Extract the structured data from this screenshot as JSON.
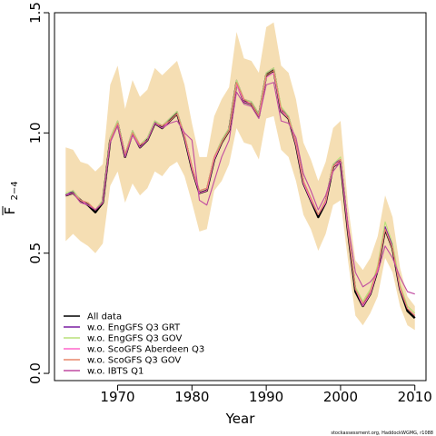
{
  "chart_data": {
    "type": "line",
    "xlabel": "Year",
    "ylabel_main": "F",
    "ylabel_sub": "2−4",
    "xlim": [
      1961.5,
      2011.5
    ],
    "ylim": [
      -0.03,
      1.5
    ],
    "xticks": [
      1970,
      1980,
      1990,
      2000,
      2010
    ],
    "yticks": [
      0.0,
      0.5,
      1.0,
      1.5
    ],
    "ytick_labels": [
      "0.0",
      "0.5",
      "1.0",
      "1.5"
    ],
    "legend_position": "bottom-left",
    "credit": "stockassessment.org, HaddockWGMG, r1088",
    "x": [
      1963,
      1964,
      1965,
      1966,
      1967,
      1968,
      1969,
      1970,
      1971,
      1972,
      1973,
      1974,
      1975,
      1976,
      1977,
      1978,
      1979,
      1980,
      1981,
      1982,
      1983,
      1984,
      1985,
      1986,
      1987,
      1988,
      1989,
      1990,
      1991,
      1992,
      1993,
      1994,
      1995,
      1996,
      1997,
      1998,
      1999,
      2000,
      2001,
      2002,
      2003,
      2004,
      2005,
      2006,
      2007,
      2008,
      2009,
      2010
    ],
    "band": {
      "color": "#f5deb3",
      "upper": [
        0.94,
        0.93,
        0.88,
        0.87,
        0.84,
        0.87,
        1.2,
        1.28,
        1.1,
        1.22,
        1.15,
        1.18,
        1.27,
        1.24,
        1.27,
        1.3,
        1.2,
        1.04,
        0.9,
        0.9,
        1.07,
        1.14,
        1.19,
        1.42,
        1.31,
        1.3,
        1.25,
        1.44,
        1.46,
        1.28,
        1.25,
        1.14,
        0.96,
        0.89,
        0.8,
        0.88,
        1.02,
        1.05,
        0.7,
        0.47,
        0.43,
        0.48,
        0.57,
        0.74,
        0.65,
        0.44,
        0.32,
        0.28
      ],
      "lower": [
        0.55,
        0.58,
        0.55,
        0.53,
        0.5,
        0.54,
        0.78,
        0.84,
        0.71,
        0.79,
        0.74,
        0.77,
        0.84,
        0.82,
        0.86,
        0.88,
        0.82,
        0.71,
        0.59,
        0.6,
        0.76,
        0.8,
        0.87,
        1.02,
        0.96,
        0.95,
        0.89,
        1.06,
        1.07,
        0.93,
        0.9,
        0.8,
        0.66,
        0.6,
        0.51,
        0.58,
        0.7,
        0.72,
        0.47,
        0.24,
        0.2,
        0.25,
        0.32,
        0.48,
        0.42,
        0.28,
        0.2,
        0.18
      ]
    },
    "series": [
      {
        "name": "All data",
        "color": "#000000",
        "width": 2.4,
        "values": [
          0.74,
          0.75,
          0.72,
          0.7,
          0.67,
          0.71,
          0.97,
          1.04,
          0.9,
          1.0,
          0.94,
          0.97,
          1.04,
          1.02,
          1.05,
          1.08,
          0.98,
          0.85,
          0.75,
          0.76,
          0.89,
          0.96,
          1.01,
          1.21,
          1.13,
          1.12,
          1.07,
          1.24,
          1.26,
          1.09,
          1.06,
          0.95,
          0.79,
          0.72,
          0.65,
          0.71,
          0.86,
          0.88,
          0.59,
          0.34,
          0.28,
          0.33,
          0.43,
          0.6,
          0.52,
          0.35,
          0.26,
          0.23
        ]
      },
      {
        "name": "w.o. EngGFS Q3 GRT",
        "color": "#7a1fa2",
        "width": 1.1,
        "values": [
          0.74,
          0.76,
          0.72,
          0.71,
          0.68,
          0.72,
          0.98,
          1.05,
          0.91,
          1.01,
          0.95,
          0.98,
          1.05,
          1.03,
          1.06,
          1.09,
          0.99,
          0.86,
          0.76,
          0.77,
          0.9,
          0.97,
          1.02,
          1.22,
          1.14,
          1.13,
          1.08,
          1.25,
          1.27,
          1.1,
          1.07,
          0.96,
          0.8,
          0.73,
          0.66,
          0.72,
          0.87,
          0.89,
          0.6,
          0.35,
          0.29,
          0.34,
          0.44,
          0.61,
          0.53,
          0.36,
          0.27,
          0.24
        ]
      },
      {
        "name": "w.o. EngGFS Q3 GOV",
        "color": "#b8e07a",
        "width": 1.1,
        "values": [
          0.75,
          0.76,
          0.72,
          0.71,
          0.68,
          0.72,
          0.98,
          1.05,
          0.91,
          1.01,
          0.95,
          0.98,
          1.05,
          1.03,
          1.06,
          1.09,
          0.99,
          0.86,
          0.76,
          0.77,
          0.9,
          0.97,
          1.02,
          1.22,
          1.14,
          1.13,
          1.08,
          1.25,
          1.27,
          1.11,
          1.07,
          0.96,
          0.8,
          0.73,
          0.66,
          0.72,
          0.87,
          0.9,
          0.61,
          0.36,
          0.3,
          0.35,
          0.45,
          0.63,
          0.54,
          0.37,
          0.28,
          0.25
        ]
      },
      {
        "name": "w.o. ScoGFS Aberdeen Q3",
        "color": "#ff66cc",
        "width": 1.1,
        "values": [
          0.74,
          0.75,
          0.72,
          0.7,
          0.68,
          0.71,
          0.97,
          1.04,
          0.9,
          1.0,
          0.94,
          0.97,
          1.04,
          1.02,
          1.05,
          1.08,
          0.98,
          0.85,
          0.75,
          0.76,
          0.89,
          0.96,
          1.01,
          1.2,
          1.13,
          1.12,
          1.07,
          1.23,
          1.25,
          1.09,
          1.06,
          0.95,
          0.79,
          0.72,
          0.66,
          0.71,
          0.86,
          0.88,
          0.59,
          0.35,
          0.28,
          0.33,
          0.43,
          0.6,
          0.52,
          0.35,
          0.27,
          0.24
        ]
      },
      {
        "name": "w.o. ScoGFS Q3 GOV",
        "color": "#e8866a",
        "width": 1.1,
        "values": [
          0.74,
          0.75,
          0.72,
          0.71,
          0.68,
          0.71,
          0.97,
          1.04,
          0.91,
          1.0,
          0.95,
          0.97,
          1.04,
          1.03,
          1.05,
          1.08,
          0.99,
          0.86,
          0.76,
          0.77,
          0.9,
          0.96,
          1.01,
          1.21,
          1.14,
          1.12,
          1.07,
          1.24,
          1.26,
          1.1,
          1.06,
          0.96,
          0.8,
          0.73,
          0.66,
          0.72,
          0.86,
          0.89,
          0.6,
          0.35,
          0.29,
          0.34,
          0.44,
          0.6,
          0.52,
          0.36,
          0.27,
          0.24
        ]
      },
      {
        "name": "w.o. IBTS Q1",
        "color": "#c04aa0",
        "width": 1.1,
        "values": [
          0.74,
          0.75,
          0.71,
          0.7,
          0.68,
          0.71,
          0.96,
          1.03,
          0.9,
          0.99,
          0.94,
          0.97,
          1.04,
          1.02,
          1.04,
          1.05,
          1.0,
          0.97,
          0.72,
          0.7,
          0.8,
          0.9,
          0.97,
          1.17,
          1.12,
          1.11,
          1.06,
          1.2,
          1.21,
          1.05,
          1.04,
          0.98,
          0.83,
          0.76,
          0.68,
          0.74,
          0.84,
          0.88,
          0.62,
          0.42,
          0.36,
          0.38,
          0.42,
          0.53,
          0.48,
          0.4,
          0.34,
          0.33
        ]
      }
    ]
  }
}
